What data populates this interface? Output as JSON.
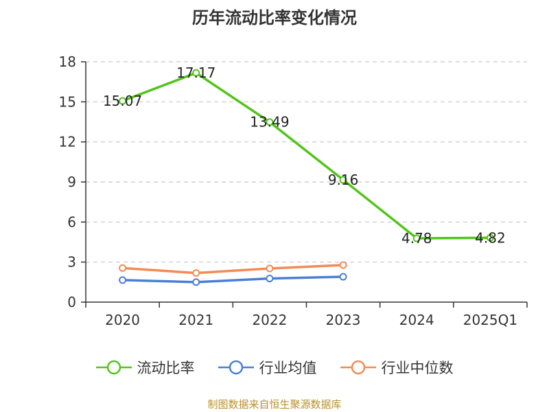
{
  "chart_data": {
    "type": "line",
    "title": "历年流动比率变化情况",
    "categories": [
      "2020",
      "2021",
      "2022",
      "2023",
      "2024",
      "2025Q1"
    ],
    "ylim": [
      0,
      18
    ],
    "yticks": [
      0,
      3,
      6,
      9,
      12,
      15,
      18
    ],
    "grid": true,
    "legend_position": "bottom",
    "series": [
      {
        "name": "流动比率",
        "color": "#52c41a",
        "values": [
          15.07,
          17.17,
          13.49,
          9.16,
          4.78,
          4.82
        ],
        "show_labels": true
      },
      {
        "name": "行业均值",
        "color": "#4a7fd6",
        "values": [
          1.65,
          1.5,
          1.77,
          1.9,
          null,
          null
        ],
        "show_labels": false
      },
      {
        "name": "行业中位数",
        "color": "#f28b54",
        "values": [
          2.55,
          2.18,
          2.52,
          2.78,
          null,
          null
        ],
        "show_labels": false
      }
    ]
  },
  "source": "制图数据来自恒生聚源数据库"
}
